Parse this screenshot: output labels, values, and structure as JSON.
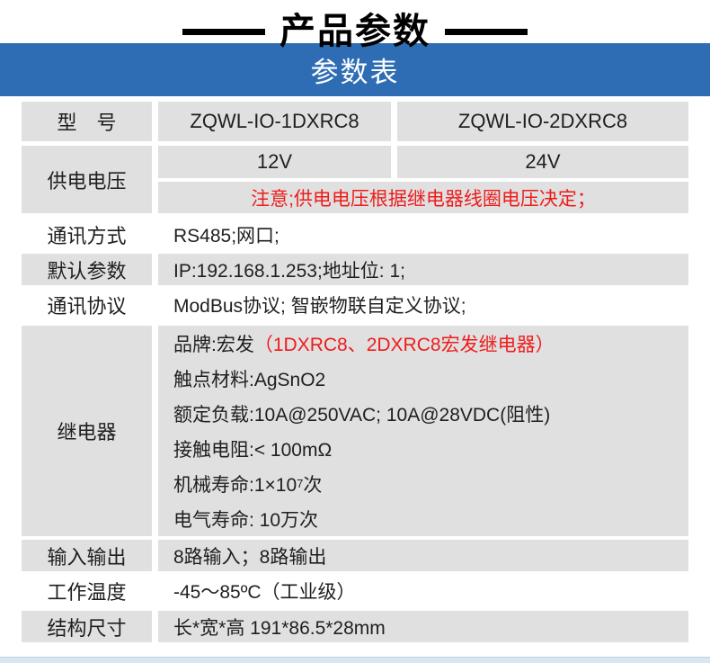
{
  "title": "产品参数",
  "table_title": "参数表",
  "colors": {
    "accent_blue": "#2e6db4",
    "row_gray": "#e0e0e0",
    "alert_red": "#ee1c1c",
    "footer_strip_blue": "#d9e7f5"
  },
  "rows": {
    "model": {
      "label": "型　号",
      "col1": "ZQWL-IO-1DXRC8",
      "col2": "ZQWL-IO-2DXRC8"
    },
    "voltage": {
      "label": "供电电压",
      "col1": "12V",
      "col2": "24V",
      "note": "注意;供电电压根据继电器线圈电压决定；"
    },
    "comm_mode": {
      "label": "通讯方式",
      "value": "RS485;网口;"
    },
    "defaults": {
      "label": "默认参数",
      "value": "IP:192.168.1.253;地址位: 1;"
    },
    "protocol": {
      "label": "通讯协议",
      "value": "ModBus协议; 智嵌物联自定义协议;"
    },
    "relay": {
      "label": "继电器",
      "brand_prefix": "品牌:宏发",
      "brand_note": "（1DXRC8、2DXRC8宏发继电器）",
      "contact_material": "触点材料:AgSnO2",
      "rated_load": "额定负载:10A@250VAC; 10A@28VDC(阻性)",
      "contact_resistance": "接触电阻:< 100mΩ",
      "mech_life_prefix": "机械寿命:1×10",
      "mech_life_sup": "7",
      "mech_life_suffix": "次",
      "elec_life": "电气寿命: 10万次"
    },
    "io": {
      "label": "输入输出",
      "value": "8路输入；8路输出"
    },
    "temperature": {
      "label": "工作温度",
      "value": "-45～85ºC（工业级）"
    },
    "dimensions": {
      "label": "结构尺寸",
      "value": "长*宽*高 191*86.5*28mm"
    }
  }
}
